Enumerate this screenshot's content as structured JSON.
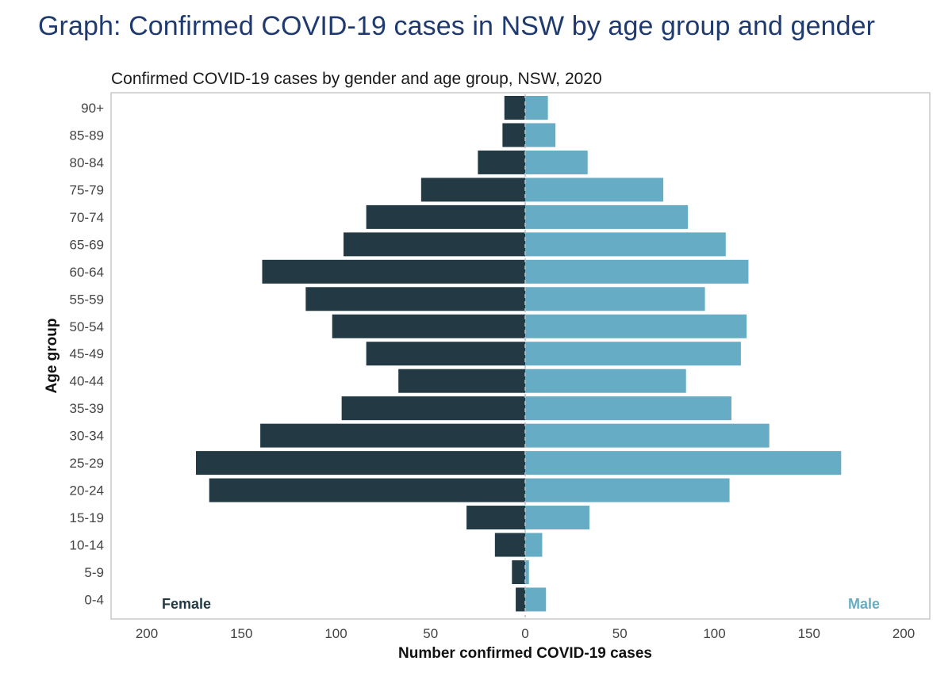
{
  "page_heading": "Graph: Confirmed COVID-19 cases in NSW by age group and gender",
  "chart_data": {
    "type": "bar",
    "orientation": "horizontal-pyramid",
    "title": "Confirmed COVID-19 cases by gender and age group, NSW, 2020",
    "xlabel": "Number confirmed COVID-19 cases",
    "ylabel": "Age group",
    "xlim": [
      -220,
      220
    ],
    "x_ticks": [
      -200,
      -150,
      -100,
      -50,
      0,
      50,
      100,
      150,
      200
    ],
    "x_tick_labels": [
      "200",
      "150",
      "100",
      "50",
      "0",
      "50",
      "100",
      "150",
      "200"
    ],
    "categories": [
      "0-4",
      "5-9",
      "10-14",
      "15-19",
      "20-24",
      "25-29",
      "30-34",
      "35-39",
      "40-44",
      "45-49",
      "50-54",
      "55-59",
      "60-64",
      "65-69",
      "70-74",
      "75-79",
      "80-84",
      "85-89",
      "90+"
    ],
    "series": [
      {
        "name": "Female",
        "color": "#233a44",
        "values": [
          5,
          7,
          16,
          31,
          167,
          174,
          140,
          97,
          67,
          84,
          102,
          116,
          139,
          96,
          84,
          55,
          25,
          12,
          11
        ]
      },
      {
        "name": "Male",
        "color": "#66acc4",
        "values": [
          11,
          2,
          9,
          34,
          108,
          167,
          129,
          109,
          85,
          114,
          117,
          95,
          118,
          106,
          86,
          73,
          33,
          16,
          12
        ]
      }
    ],
    "grid": false,
    "legend_placement": "bottom-corners",
    "zero_line": "dashed"
  }
}
